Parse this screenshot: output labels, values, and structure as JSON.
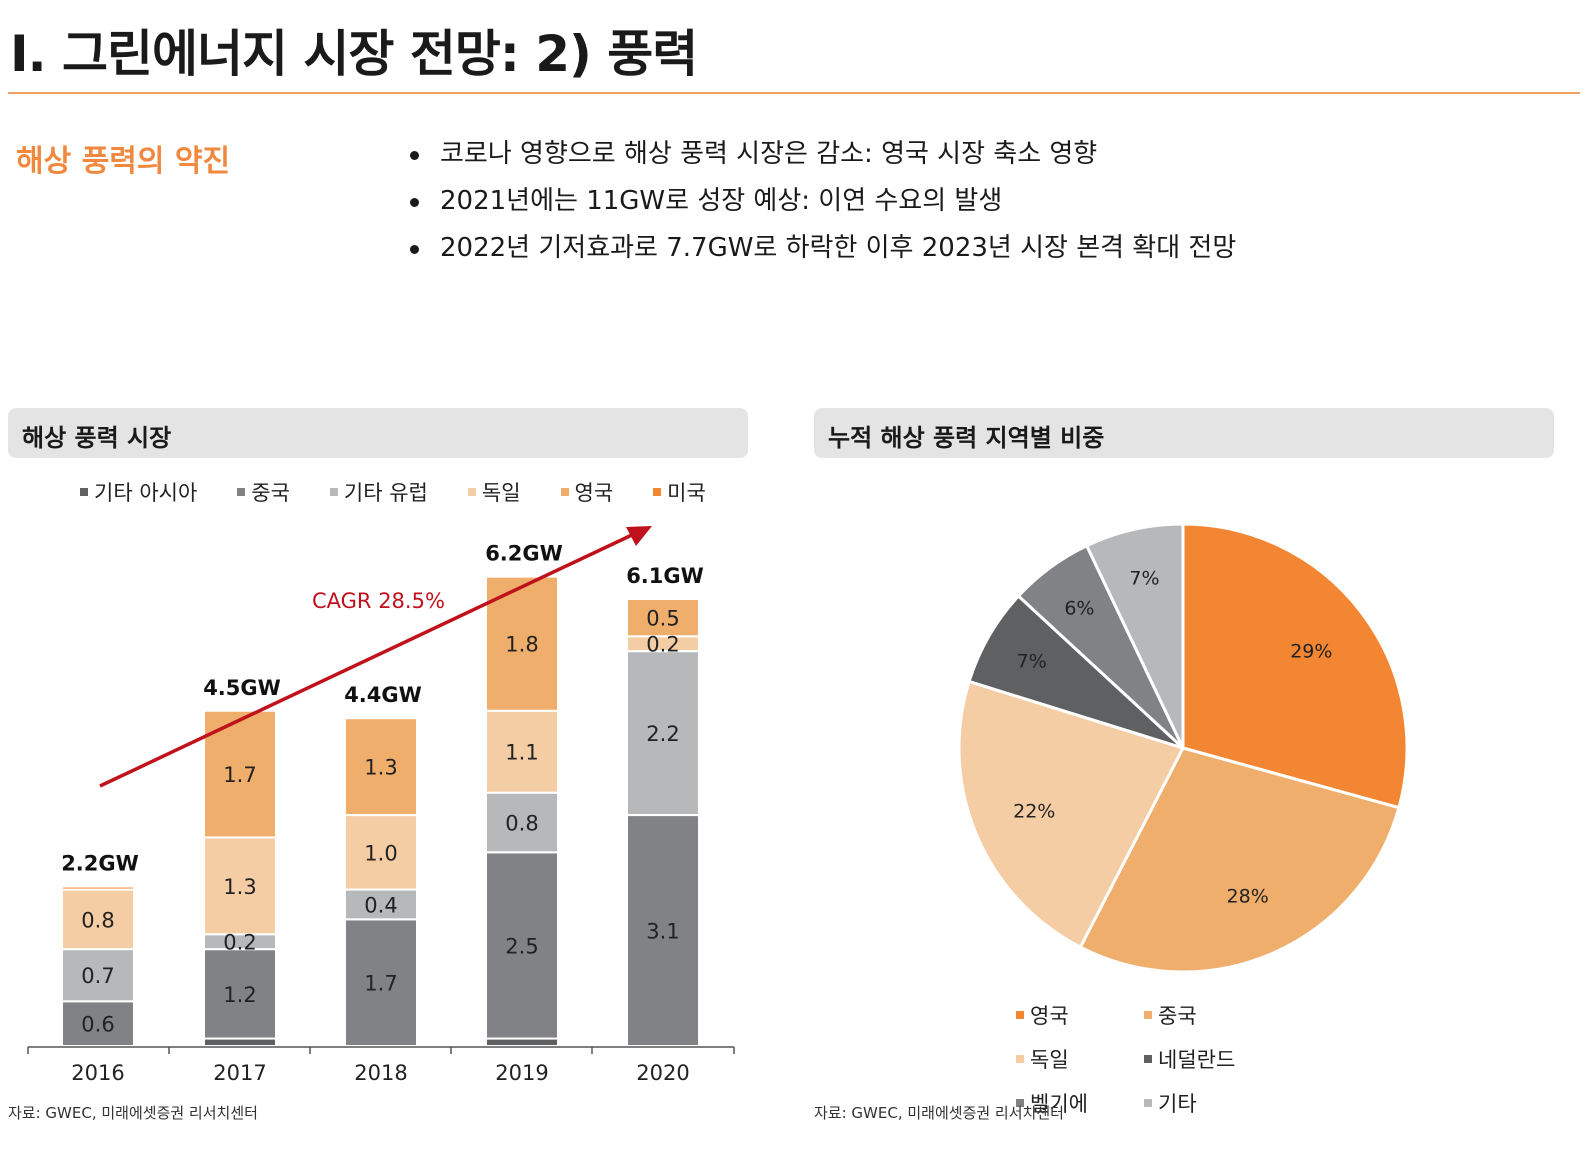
{
  "header": {
    "title": "I. 그린에너지 시장 전망: 2) 풍력"
  },
  "section": {
    "heading": "해상 풍력의 약진",
    "bullets": [
      "코로나 영향으로 해상 풍력 시장은 감소: 영국 시장 축소 영향",
      "2021년에는 11GW로 성장 예상: 이연 수요의 발생",
      "2022년 기저효과로 7.7GW로 하락한 이후 2023년 시장 본격 확대 전망"
    ]
  },
  "left_panel": {
    "title": "해상 풍력  시장",
    "source": "자료: GWEC, 미래에셋증권 리서치센터"
  },
  "right_panel": {
    "title": "누적 해상 풍력 지역별 비중",
    "source": "자료: GWEC, 미래에셋증권 리서치센터"
  },
  "colors": {
    "dark_gray": "#5f6062",
    "mid_gray": "#808285",
    "light_gray": "#b6b8ba",
    "light_orange": "#f5cda5",
    "orange": "#efae6c",
    "deep_orange": "#f38632",
    "arrow": "#c0121c"
  },
  "chart_data": [
    {
      "type": "bar",
      "stacked": true,
      "title": "해상 풍력  시장",
      "categories": [
        "2016",
        "2017",
        "2018",
        "2019",
        "2020"
      ],
      "series": [
        {
          "name": "기타 아시아",
          "color": "#5f6062",
          "values": [
            0.0,
            0.1,
            0.0,
            0.1,
            0.0
          ]
        },
        {
          "name": "중국",
          "color": "#808285",
          "values": [
            0.6,
            1.2,
            1.7,
            2.5,
            3.1
          ]
        },
        {
          "name": "기타 유럽",
          "color": "#b6b8ba",
          "values": [
            0.7,
            0.2,
            0.4,
            0.8,
            2.2
          ]
        },
        {
          "name": "독일",
          "color": "#f5cda5",
          "values": [
            0.8,
            1.3,
            1.0,
            1.1,
            0.2
          ]
        },
        {
          "name": "영국",
          "color": "#efae6c",
          "values": [
            0.0,
            1.7,
            1.3,
            1.8,
            0.5
          ]
        },
        {
          "name": "미국",
          "color": "#f38632",
          "values": [
            0.03,
            0.0,
            0.0,
            0.0,
            0.0
          ]
        }
      ],
      "data_labels": [
        [
          "0.6",
          "0.7",
          "0.8"
        ],
        [
          "1.2",
          "0.2",
          "1.3",
          "1.7"
        ],
        [
          "1.7",
          "0.4",
          "1.0",
          "1.3"
        ],
        [
          "2.5",
          "0.8",
          "1.1",
          "1.8"
        ],
        [
          "3.1",
          "2.2",
          "0.2",
          "0.5"
        ]
      ],
      "totals": [
        "2.2GW",
        "4.5GW",
        "4.4GW",
        "6.2GW",
        "6.1GW"
      ],
      "annotation": "CAGR 28.5%",
      "legend_position": "top",
      "ylim": [
        0,
        6.6
      ]
    },
    {
      "type": "pie",
      "title": "누적 해상 풍력 지역별 비중",
      "labels": [
        "영국",
        "중국",
        "독일",
        "네덜란드",
        "벨기에",
        "기타"
      ],
      "values": [
        29,
        28,
        22,
        7,
        6,
        7
      ],
      "value_labels": [
        "29%",
        "28%",
        "22%",
        "7%",
        "6%",
        "7%"
      ],
      "colors": [
        "#f38632",
        "#efae6c",
        "#f5cda5",
        "#5f6062",
        "#808285",
        "#b6b8ba"
      ],
      "legend_position": "bottom"
    }
  ]
}
